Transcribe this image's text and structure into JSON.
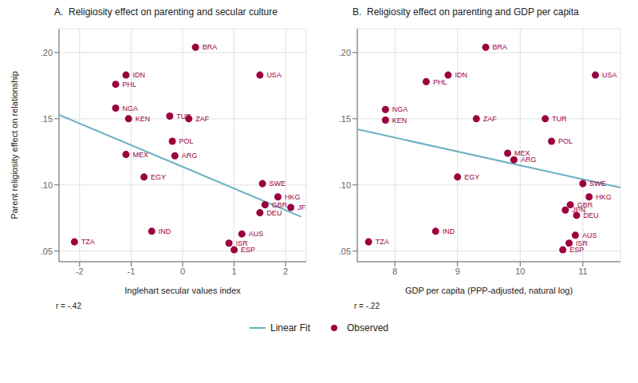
{
  "chart_data": [
    {
      "type": "scatter",
      "title": "A.  Religiosity effect on parenting and secular culture",
      "x_label": "Inglehart secular values index",
      "y_label": "Parent religiosity effect on relationship",
      "annotations": [
        "r = -.42"
      ],
      "xlim": [
        -2.4,
        2.4
      ],
      "ylim": [
        0.042,
        0.218
      ],
      "xticks": [
        -2,
        -1,
        0,
        1,
        2
      ],
      "yticks": [
        {
          "value": 0.05,
          "label": ".05"
        },
        {
          "value": 0.1,
          "label": ".10"
        },
        {
          "value": 0.15,
          "label": ".15"
        },
        {
          "value": 0.2,
          "label": ".20"
        }
      ],
      "grid": true,
      "legend": "bottom",
      "series": [
        {
          "name": "Linear Fit",
          "type": "line",
          "color": "#6ab0c0",
          "x": [
            -2.4,
            2.3
          ],
          "values": [
            0.153,
            0.076
          ]
        },
        {
          "name": "Observed",
          "type": "scatter",
          "color": "#9B003F",
          "labels": [
            "BRA",
            "IDN",
            "PHL",
            "USA",
            "NGA",
            "KEN",
            "TUR",
            "ZAF",
            "POL",
            "MEX",
            "ARG",
            "EGY",
            "SWE",
            "HKG",
            "GBR",
            "JF",
            "DEU",
            "IND",
            "AUS",
            "ISR",
            "ESP",
            "TZA"
          ],
          "x": [
            0.25,
            -1.1,
            -1.3,
            1.5,
            -1.3,
            -1.05,
            -0.25,
            0.12,
            -0.2,
            -1.1,
            -0.15,
            -0.75,
            1.55,
            1.85,
            1.6,
            2.1,
            1.5,
            -0.6,
            1.15,
            0.9,
            1.0,
            -2.1
          ],
          "values": [
            0.204,
            0.183,
            0.176,
            0.183,
            0.158,
            0.15,
            0.152,
            0.15,
            0.133,
            0.123,
            0.122,
            0.106,
            0.101,
            0.091,
            0.085,
            0.083,
            0.079,
            0.065,
            0.063,
            0.056,
            0.051,
            0.057
          ]
        }
      ]
    },
    {
      "type": "scatter",
      "title": "B.  Religiosity effect on parenting and GDP per capita",
      "x_label": "GDP per capita (PPP-adjusted, natural log)",
      "annotations": [
        "r = -.22"
      ],
      "xlim": [
        7.4,
        11.6
      ],
      "ylim": [
        0.042,
        0.218
      ],
      "xticks": [
        8,
        9,
        10,
        11
      ],
      "yticks": [
        {
          "value": 0.05,
          "label": ".05"
        },
        {
          "value": 0.1,
          "label": ".10"
        },
        {
          "value": 0.15,
          "label": ".15"
        },
        {
          "value": 0.2,
          "label": ".20"
        }
      ],
      "grid": true,
      "legend": "bottom",
      "series": [
        {
          "name": "Linear Fit",
          "type": "line",
          "color": "#6ab0c0",
          "x": [
            7.4,
            11.6
          ],
          "values": [
            0.142,
            0.098
          ]
        },
        {
          "name": "Observed",
          "type": "scatter",
          "color": "#9B003F",
          "labels": [
            "BRA",
            "IDN",
            "PHL",
            "USA",
            "NGA",
            "KEN",
            "ZAF",
            "TUR",
            "POL",
            "MEX",
            "ARG",
            "EGY",
            "SWE",
            "HKG",
            "GBR",
            "JPN",
            "DEU",
            "IND",
            "AUS",
            "ISR",
            "ESP",
            "TZA"
          ],
          "x": [
            9.45,
            8.85,
            8.5,
            11.2,
            7.85,
            7.85,
            9.3,
            10.4,
            10.5,
            9.8,
            9.9,
            9.0,
            11.0,
            11.1,
            10.8,
            10.72,
            10.9,
            8.65,
            10.88,
            10.78,
            10.68,
            7.58
          ],
          "values": [
            0.204,
            0.183,
            0.178,
            0.183,
            0.157,
            0.149,
            0.15,
            0.15,
            0.133,
            0.124,
            0.119,
            0.106,
            0.101,
            0.091,
            0.085,
            0.081,
            0.077,
            0.065,
            0.062,
            0.056,
            0.051,
            0.057
          ]
        }
      ]
    }
  ]
}
